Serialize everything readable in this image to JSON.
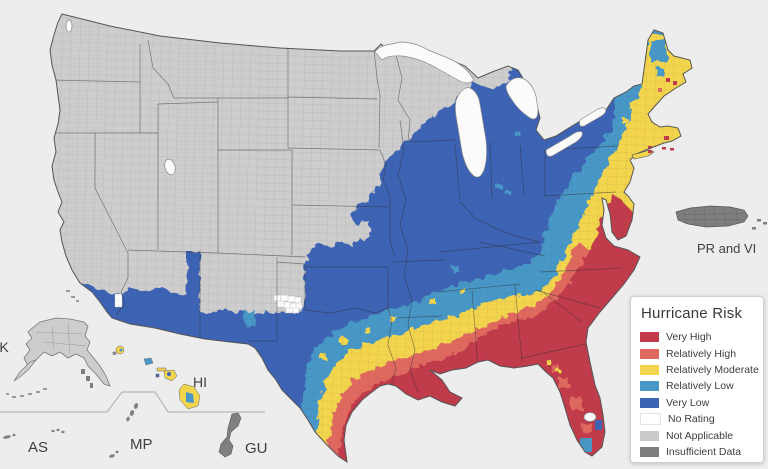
{
  "map": {
    "labels": {
      "alaska": "AK",
      "hawaii": "HI",
      "american_samoa": "AS",
      "northern_mariana": "MP",
      "guam": "GU",
      "puerto_rico_vi": "PR and VI"
    }
  },
  "legend": {
    "title": "Hurricane Risk",
    "items": [
      {
        "label": "Very High",
        "color": "#c23b4c"
      },
      {
        "label": "Relatively High",
        "color": "#e0695f"
      },
      {
        "label": "Relatively Moderate",
        "color": "#f3d44d"
      },
      {
        "label": "Relatively Low",
        "color": "#4797c7"
      },
      {
        "label": "Very Low",
        "color": "#3d63b5"
      },
      {
        "label": "No Rating",
        "color": "#ffffff"
      },
      {
        "label": "Not Applicable",
        "color": "#cbcbcb"
      },
      {
        "label": "Insufficient Data",
        "color": "#7e7e7e"
      }
    ]
  },
  "colors": {
    "background": "#ededed",
    "land_not_applicable": "#cdcdcd",
    "insufficient_data": "#7e7e7e",
    "water": "#fbfbfb",
    "state_line": "#2f2f2f",
    "county_line": "#6b6b6b",
    "inset_divider": "#b9b9b9"
  }
}
